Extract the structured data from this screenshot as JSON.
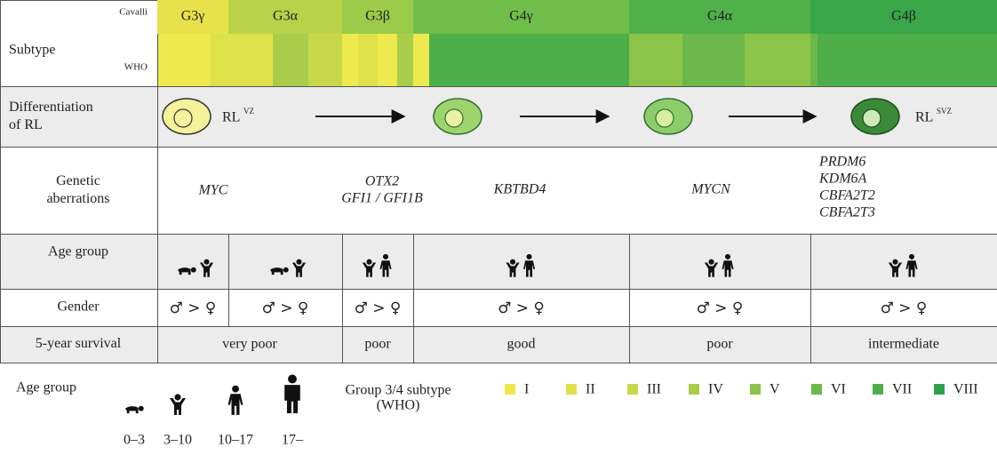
{
  "subtype": {
    "label": "Subtype",
    "cavalli_label": "Cavalli",
    "who_label": "WHO",
    "groups": [
      "G3γ",
      "G3α",
      "G3β",
      "G4γ",
      "G4α",
      "G4β"
    ]
  },
  "differentiation": {
    "label": "Differentiation of RL",
    "start": {
      "text": "RL",
      "sup": "VZ"
    },
    "end": {
      "text": "RL",
      "sup": "SVZ"
    }
  },
  "genetic": {
    "label": "Genetic aberrations",
    "items": [
      {
        "lines": [
          "MYC"
        ]
      },
      {
        "lines": [
          "OTX2",
          "GFI1 / GFI1B"
        ]
      },
      {
        "lines": [
          "KBTBD4"
        ]
      },
      {
        "lines": [
          "MYCN"
        ]
      },
      {
        "lines": [
          "PRDM6",
          "KDM6A",
          "CBFA2T2",
          "CBFA2T3"
        ]
      }
    ]
  },
  "age_group": {
    "label": "Age group"
  },
  "gender": {
    "label": "Gender",
    "cells": [
      "♂ > ♀",
      "♂ > ♀",
      "♂ > ♀",
      "♂ > ♀",
      "♂ > ♀",
      "♂ > ♀"
    ]
  },
  "survival": {
    "label": "5-year survival",
    "cells": [
      "very poor",
      "poor",
      "good",
      "poor",
      "intermediate"
    ]
  },
  "legend": {
    "age": {
      "label": "Age group",
      "ranges": [
        "0–3",
        "3–10",
        "10–17",
        "17–"
      ]
    },
    "who": {
      "label_lines": [
        "Group 3/4 subtype",
        "(WHO)"
      ],
      "items": [
        "I",
        "II",
        "III",
        "IV",
        "V",
        "VI",
        "VII",
        "VIII"
      ]
    }
  }
}
